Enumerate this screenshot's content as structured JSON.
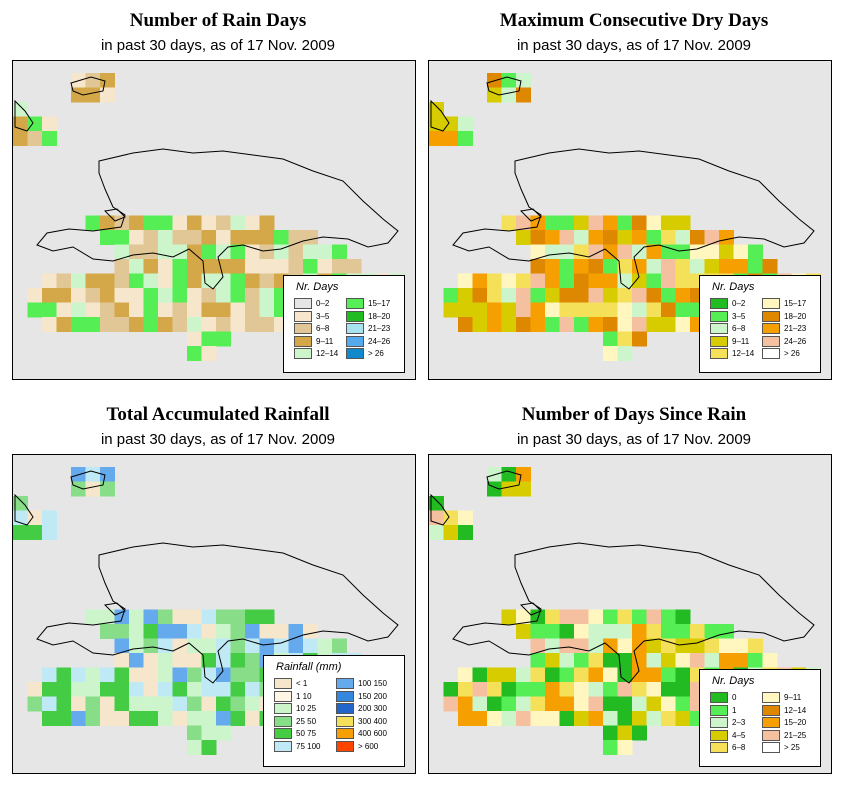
{
  "panels": [
    {
      "key": "rain_days",
      "title": "Number of Rain Days",
      "subtitle": "in past 30 days, as of  17 Nov. 2009",
      "legend": {
        "title": "Nr. Days",
        "items": [
          {
            "label": "0–2",
            "color": "#e6e6e6"
          },
          {
            "label": "3–5",
            "color": "#f5e6cc"
          },
          {
            "label": "6–8",
            "color": "#e2c796"
          },
          {
            "label": "9–11",
            "color": "#d4a848"
          },
          {
            "label": "12–14",
            "color": "#ccf5cc"
          },
          {
            "label": "15–17",
            "color": "#55ee55"
          },
          {
            "label": "18–20",
            "color": "#22bb22"
          },
          {
            "label": "21–23",
            "color": "#a8e4f0"
          },
          {
            "label": "24–26",
            "color": "#55aaee"
          },
          {
            "label": "> 26",
            "color": "#1188cc"
          }
        ]
      },
      "palette": [
        "#f5e6cc",
        "#e2c796",
        "#d4a848",
        "#ccf5cc",
        "#55ee55"
      ]
    },
    {
      "key": "dry_days",
      "title": "Maximum Consecutive Dry Days",
      "subtitle": "in past 30 days, as of  17 Nov. 2009",
      "legend": {
        "title": "Nr. Days",
        "items": [
          {
            "label": "0–2",
            "color": "#22bb22"
          },
          {
            "label": "3–5",
            "color": "#55ee55"
          },
          {
            "label": "6–8",
            "color": "#ccf5cc"
          },
          {
            "label": "9–11",
            "color": "#d6cc00"
          },
          {
            "label": "12–14",
            "color": "#f5e05a"
          },
          {
            "label": "15–17",
            "color": "#fff6c0"
          },
          {
            "label": "18–20",
            "color": "#dd8800"
          },
          {
            "label": "21–23",
            "color": "#f5a000"
          },
          {
            "label": "24–26",
            "color": "#f5c0a0"
          },
          {
            "label": "> 26",
            "color": "#ffffff"
          }
        ]
      },
      "palette": [
        "#d6cc00",
        "#f5e05a",
        "#fff6c0",
        "#ccf5cc",
        "#f5a000",
        "#dd8800",
        "#f5c0a0",
        "#55ee55"
      ]
    },
    {
      "key": "rainfall",
      "title": "Total Accumulated Rainfall",
      "subtitle": "in past 30 days, as of  17 Nov. 2009",
      "legend": {
        "title": "Rainfall (mm)",
        "items": [
          {
            "label": "< 1",
            "color": "#f5e6cc"
          },
          {
            "label": "1   10",
            "color": "#fff6e6"
          },
          {
            "label": "10   25",
            "color": "#ccf5cc"
          },
          {
            "label": "25   50",
            "color": "#88dd88"
          },
          {
            "label": "50   75",
            "color": "#44cc44"
          },
          {
            "label": "75  100",
            "color": "#bfeaf5"
          },
          {
            "label": "100  150",
            "color": "#66aaee"
          },
          {
            "label": "150  200",
            "color": "#3388dd"
          },
          {
            "label": "200  300",
            "color": "#2266cc"
          },
          {
            "label": "300  400",
            "color": "#f5e05a"
          },
          {
            "label": "400  600",
            "color": "#f5a000"
          },
          {
            "label": "> 600",
            "color": "#ff4400"
          }
        ]
      },
      "palette": [
        "#44cc44",
        "#88dd88",
        "#bfeaf5",
        "#ccf5cc",
        "#66aaee",
        "#f5e6cc"
      ]
    },
    {
      "key": "since_rain",
      "title": "Number of Days Since Rain",
      "subtitle": "in past 30 days, as of  17 Nov. 2009",
      "legend": {
        "title": "Nr. Days",
        "items": [
          {
            "label": "0",
            "color": "#22bb22"
          },
          {
            "label": "1",
            "color": "#55ee55"
          },
          {
            "label": "2–3",
            "color": "#ccf5cc"
          },
          {
            "label": "4–5",
            "color": "#d6cc00"
          },
          {
            "label": "6–8",
            "color": "#f5e05a"
          },
          {
            "label": "9–11",
            "color": "#fff6c0"
          },
          {
            "label": "12–14",
            "color": "#dd8800"
          },
          {
            "label": "15–20",
            "color": "#f5a000"
          },
          {
            "label": "21–25",
            "color": "#f5c0a0"
          },
          {
            "label": "> 25",
            "color": "#ffffff"
          }
        ]
      },
      "palette": [
        "#ccf5cc",
        "#f5e05a",
        "#fff6c0",
        "#d6cc00",
        "#55ee55",
        "#f5a000",
        "#f5c0a0",
        "#22bb22"
      ]
    }
  ]
}
